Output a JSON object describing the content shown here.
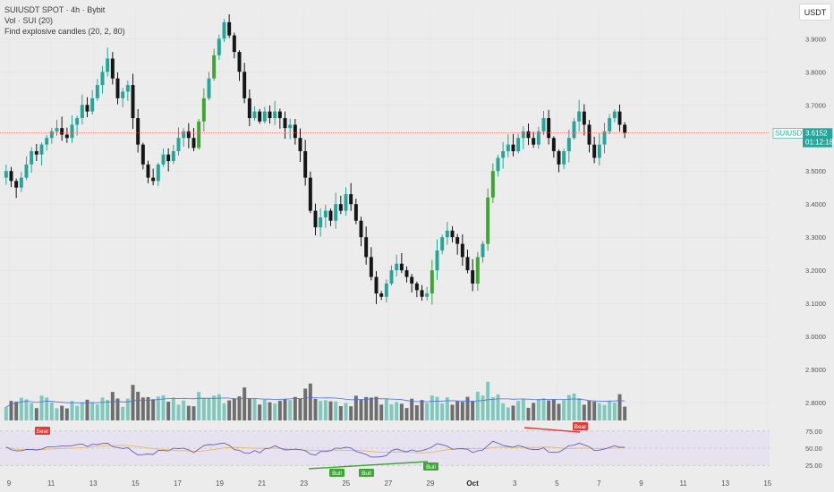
{
  "legend": {
    "symbol_line": "SUIUSDT SPOT · 4h · Bybit",
    "volume_line": "Vol · SUI (20)",
    "indicator_line": "Find explosive candles (20, 2, 80)"
  },
  "currency_button": "USDT",
  "price_scale": [
    "3.9000",
    "3.8000",
    "3.7000",
    "3.6000",
    "3.5000",
    "3.4000",
    "3.3000",
    "3.2000",
    "3.1000",
    "3.0000",
    "2.9000",
    "2.8000"
  ],
  "current_price": {
    "symbol": "SUIUSDT",
    "price": "3.6152",
    "countdown": "01:12:18",
    "value": 3.6152
  },
  "rsi_scale": [
    "75.00",
    "50.00",
    "25.00"
  ],
  "rsi_badges": {
    "bear_label": "Bear",
    "bull_label": "Bull"
  },
  "x_axis": [
    "9",
    "11",
    "13",
    "15",
    "17",
    "19",
    "21",
    "23",
    "25",
    "27",
    "29",
    "Oct",
    "3",
    "5",
    "7",
    "9",
    "11",
    "13",
    "15"
  ],
  "colors": {
    "up": "#26a69a",
    "down": "#161616",
    "explosive_up": "#3fa535",
    "vol_up": "#7ec8bd",
    "vol_down": "#6e6e6e",
    "vol_ma": "#4c6fd8",
    "rsi": "#6a5fb8",
    "rsi_ma": "#e9b64a",
    "bear": "#e53935",
    "bull": "#3fa535",
    "price_line": "#e57373"
  },
  "chart_data": {
    "type": "candlestick",
    "symbol": "SUIUSDT SPOT",
    "timeframe": "4h",
    "exchange": "Bybit",
    "price_range": [
      2.73,
      3.99
    ],
    "close_series_approx": [
      3.5,
      3.47,
      3.45,
      3.48,
      3.52,
      3.56,
      3.55,
      3.58,
      3.6,
      3.62,
      3.63,
      3.61,
      3.6,
      3.64,
      3.66,
      3.7,
      3.68,
      3.72,
      3.76,
      3.8,
      3.84,
      3.78,
      3.72,
      3.74,
      3.76,
      3.66,
      3.58,
      3.52,
      3.48,
      3.47,
      3.52,
      3.55,
      3.53,
      3.56,
      3.6,
      3.62,
      3.6,
      3.57,
      3.65,
      3.72,
      3.78,
      3.85,
      3.9,
      3.95,
      3.91,
      3.86,
      3.8,
      3.72,
      3.66,
      3.68,
      3.65,
      3.68,
      3.66,
      3.68,
      3.66,
      3.63,
      3.64,
      3.6,
      3.56,
      3.48,
      3.38,
      3.33,
      3.36,
      3.38,
      3.35,
      3.4,
      3.38,
      3.43,
      3.4,
      3.35,
      3.3,
      3.24,
      3.18,
      3.13,
      3.12,
      3.16,
      3.2,
      3.22,
      3.2,
      3.18,
      3.16,
      3.14,
      3.12,
      3.13,
      3.2,
      3.26,
      3.3,
      3.32,
      3.3,
      3.28,
      3.24,
      3.2,
      3.16,
      3.24,
      3.28,
      3.42,
      3.5,
      3.54,
      3.56,
      3.58,
      3.56,
      3.6,
      3.62,
      3.6,
      3.58,
      3.62,
      3.66,
      3.6,
      3.56,
      3.52,
      3.56,
      3.6,
      3.65,
      3.68,
      3.64,
      3.58,
      3.54,
      3.58,
      3.62,
      3.66,
      3.68,
      3.64,
      3.6152
    ],
    "volume_range_max": 3.05,
    "rsi_range": [
      20,
      80
    ],
    "rsi_levels": [
      75,
      50,
      25
    ],
    "divergence_signals": [
      "Bear",
      "Bull",
      "Bull",
      "Bull",
      "Bear"
    ]
  }
}
